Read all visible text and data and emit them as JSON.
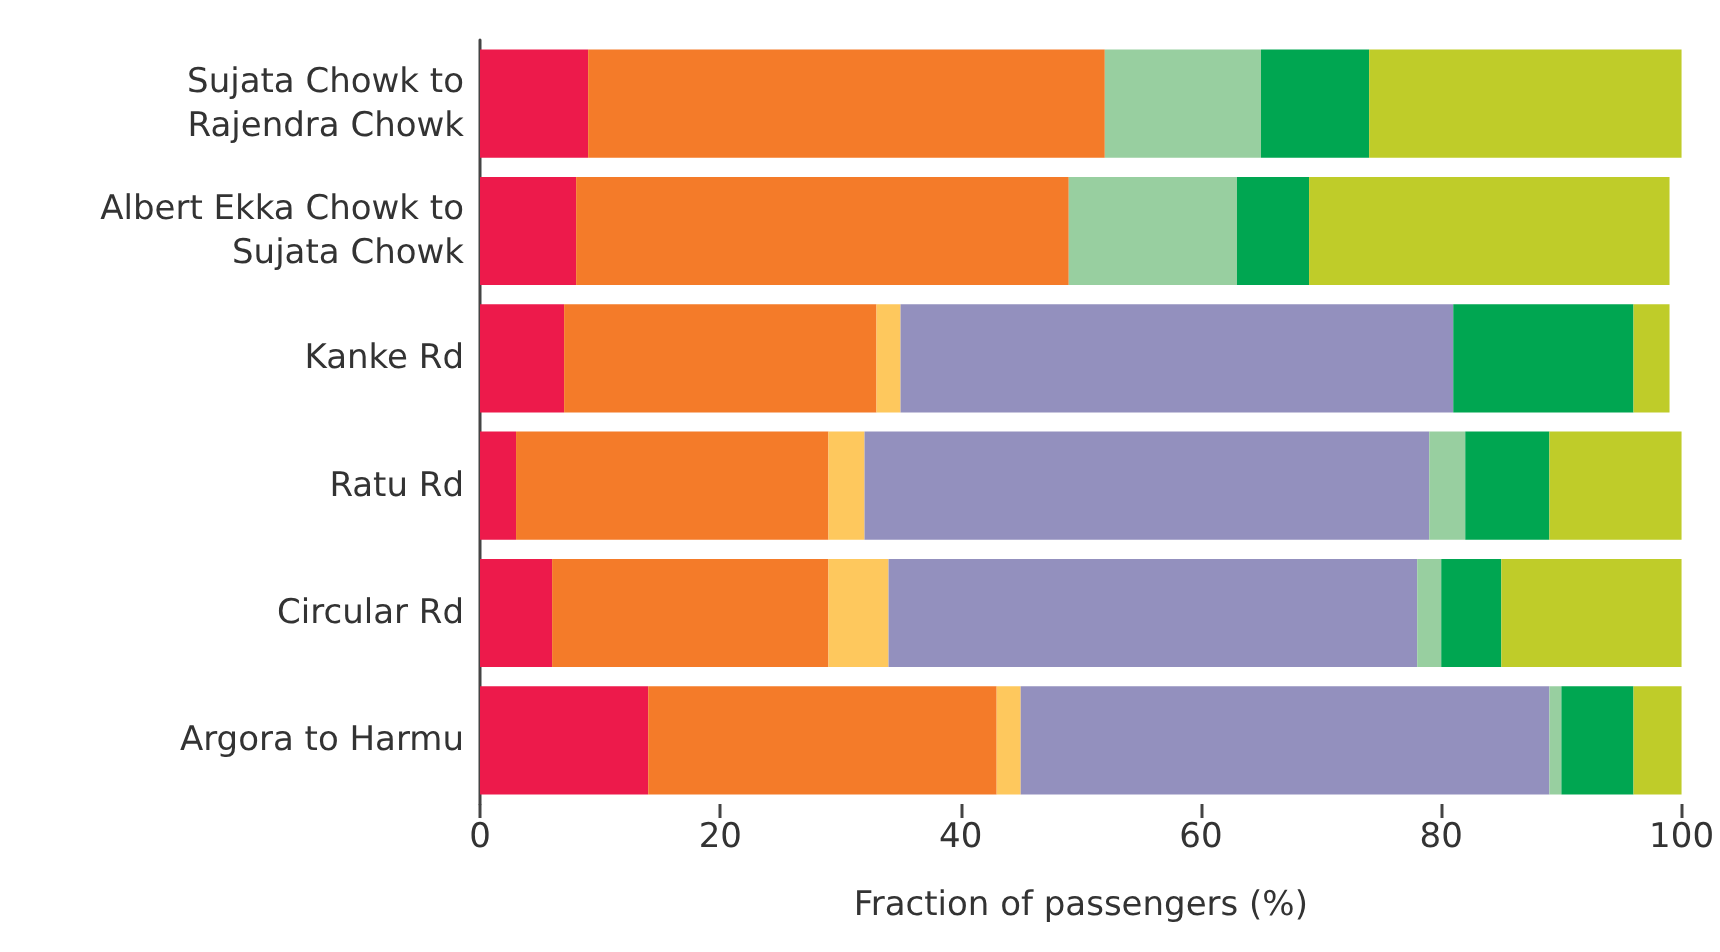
{
  "chart_data": {
    "type": "bar",
    "orientation": "horizontal",
    "stacked": true,
    "xlabel": "Fraction of passengers (%)",
    "categories": [
      "Sujata Chowk to\nRajendra Chowk",
      "Albert Ekka Chowk to\nSujata Chowk",
      "Kanke Rd",
      "Ratu Rd",
      "Circular Rd",
      "Argora to Harmu"
    ],
    "series": [
      {
        "color": "#ed1a4b",
        "values": [
          9,
          8,
          7,
          3,
          6,
          14
        ]
      },
      {
        "color": "#f47b29",
        "values": [
          43,
          41,
          26,
          26,
          23,
          29
        ]
      },
      {
        "color": "#fec85d",
        "values": [
          null,
          null,
          2,
          3,
          5,
          2
        ]
      },
      {
        "color": "#9390be",
        "values": [
          null,
          null,
          46,
          47,
          44,
          44
        ]
      },
      {
        "color": "#98cfa0",
        "values": [
          13,
          14,
          null,
          3,
          2,
          1
        ]
      },
      {
        "color": "#00a651",
        "values": [
          9,
          6,
          15,
          7,
          5,
          6
        ]
      },
      {
        "color": "#bfcc29",
        "values": [
          26,
          30,
          3,
          11,
          15,
          4
        ]
      }
    ],
    "xlim": [
      0,
      100
    ],
    "xticks": [
      0,
      20,
      40,
      60,
      80,
      100
    ]
  }
}
